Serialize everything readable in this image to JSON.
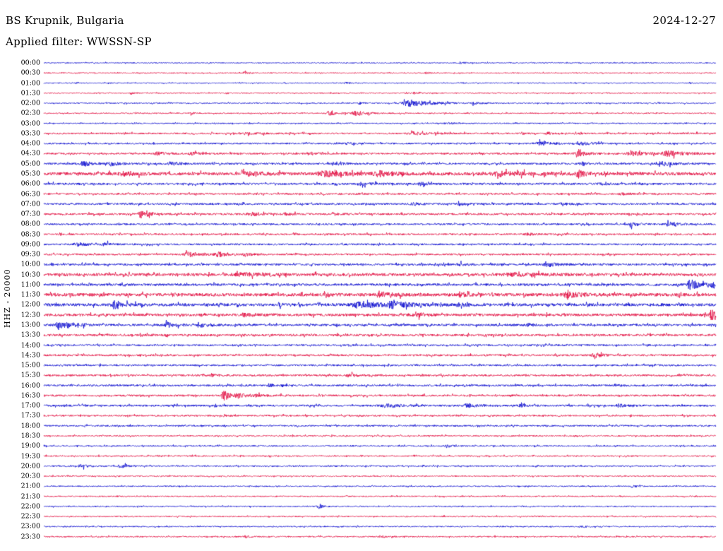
{
  "header": {
    "station": "BS Krupnik, Bulgaria",
    "date": "2024-12-27",
    "filter": "Applied filter: WWSSN-SP"
  },
  "chart_data": {
    "type": "line",
    "subtype": "helicorder-day-plot",
    "ylabel": "HHZ - 20000",
    "minutes_per_row": 30,
    "grid": false,
    "colors": {
      "blue": "#0000cc",
      "red": "#e00038"
    },
    "rows": [
      {
        "time": "00:00",
        "color": "blue",
        "base": 0.7,
        "events": [
          [
            0.62,
            1.2,
            0.008
          ]
        ]
      },
      {
        "time": "00:30",
        "color": "red",
        "base": 0.7,
        "events": [
          [
            0.3,
            1.5,
            0.006
          ],
          [
            0.57,
            1.2,
            0.006
          ]
        ]
      },
      {
        "time": "01:00",
        "color": "blue",
        "base": 0.7,
        "events": [
          [
            0.45,
            1.0,
            0.006
          ]
        ]
      },
      {
        "time": "01:30",
        "color": "red",
        "base": 0.7,
        "events": [
          [
            0.13,
            1.3,
            0.005
          ],
          [
            0.55,
            1.3,
            0.008
          ]
        ]
      },
      {
        "time": "02:00",
        "color": "blue",
        "base": 0.8,
        "events": [
          [
            0.545,
            4.5,
            0.03
          ],
          [
            0.47,
            1.3,
            0.006
          ],
          [
            0.64,
            1.5,
            0.01
          ]
        ]
      },
      {
        "time": "02:30",
        "color": "red",
        "base": 0.8,
        "events": [
          [
            0.425,
            2.8,
            0.012
          ],
          [
            0.465,
            3.2,
            0.015
          ],
          [
            0.22,
            1.2,
            0.005
          ]
        ]
      },
      {
        "time": "03:00",
        "color": "blue",
        "base": 0.8,
        "events": [
          [
            0.6,
            1.2,
            0.01
          ]
        ]
      },
      {
        "time": "03:30",
        "color": "red",
        "base": 1.1,
        "events": [
          [
            0.55,
            2.0,
            0.02
          ],
          [
            0.3,
            1.5,
            0.02
          ],
          [
            0.75,
            1.4,
            0.01
          ]
        ]
      },
      {
        "time": "04:00",
        "color": "blue",
        "base": 1.1,
        "events": [
          [
            0.74,
            2.2,
            0.02
          ],
          [
            0.8,
            2.0,
            0.015
          ],
          [
            0.45,
            1.3,
            0.01
          ]
        ]
      },
      {
        "time": "04:30",
        "color": "red",
        "base": 1.2,
        "events": [
          [
            0.17,
            2.0,
            0.015
          ],
          [
            0.22,
            1.8,
            0.01
          ],
          [
            0.4,
            1.5,
            0.01
          ],
          [
            0.795,
            4.5,
            0.012
          ],
          [
            0.875,
            3.0,
            0.02
          ],
          [
            0.93,
            3.5,
            0.025
          ]
        ]
      },
      {
        "time": "05:00",
        "color": "blue",
        "base": 1.3,
        "events": [
          [
            0.06,
            3.0,
            0.015
          ],
          [
            0.1,
            2.5,
            0.012
          ],
          [
            0.19,
            2.8,
            0.012
          ],
          [
            0.44,
            1.6,
            0.01
          ],
          [
            0.8,
            1.5,
            0.01
          ],
          [
            0.92,
            3.2,
            0.015
          ]
        ]
      },
      {
        "time": "05:30",
        "color": "red",
        "base": 2.2,
        "events": [
          [
            0.12,
            2.0,
            0.02
          ],
          [
            0.3,
            2.5,
            0.02
          ],
          [
            0.42,
            3.0,
            0.03
          ],
          [
            0.5,
            3.0,
            0.02
          ],
          [
            0.68,
            2.8,
            0.03
          ],
          [
            0.795,
            5.5,
            0.008
          ]
        ]
      },
      {
        "time": "06:00",
        "color": "blue",
        "base": 1.4,
        "events": [
          [
            0.47,
            1.8,
            0.015
          ],
          [
            0.56,
            1.8,
            0.01
          ],
          [
            0.83,
            1.5,
            0.01
          ]
        ]
      },
      {
        "time": "06:30",
        "color": "red",
        "base": 1.2,
        "events": [
          [
            0.86,
            1.4,
            0.01
          ]
        ]
      },
      {
        "time": "07:00",
        "color": "blue",
        "base": 1.3,
        "events": [
          [
            0.55,
            1.8,
            0.01
          ],
          [
            0.62,
            1.6,
            0.01
          ],
          [
            0.77,
            1.6,
            0.008
          ]
        ]
      },
      {
        "time": "07:30",
        "color": "red",
        "base": 1.3,
        "events": [
          [
            0.145,
            4.8,
            0.012
          ],
          [
            0.31,
            2.2,
            0.015
          ],
          [
            0.36,
            1.8,
            0.01
          ],
          [
            0.43,
            1.6,
            0.01
          ]
        ]
      },
      {
        "time": "08:00",
        "color": "blue",
        "base": 1.2,
        "events": [
          [
            0.875,
            2.8,
            0.01
          ],
          [
            0.93,
            3.2,
            0.012
          ]
        ]
      },
      {
        "time": "08:30",
        "color": "red",
        "base": 1.2,
        "events": [
          [
            0.72,
            1.4,
            0.01
          ]
        ]
      },
      {
        "time": "09:00",
        "color": "blue",
        "base": 1.2,
        "events": [
          [
            0.05,
            2.2,
            0.015
          ],
          [
            0.09,
            2.0,
            0.01
          ]
        ]
      },
      {
        "time": "09:30",
        "color": "red",
        "base": 1.2,
        "events": [
          [
            0.215,
            3.5,
            0.015
          ],
          [
            0.26,
            3.0,
            0.015
          ],
          [
            0.3,
            2.0,
            0.01
          ]
        ]
      },
      {
        "time": "10:00",
        "color": "blue",
        "base": 1.4,
        "events": [
          [
            0.62,
            1.5,
            0.01
          ],
          [
            0.75,
            2.8,
            0.015
          ]
        ]
      },
      {
        "time": "10:30",
        "color": "red",
        "base": 1.9,
        "events": [
          [
            0.3,
            1.5,
            0.05
          ],
          [
            0.7,
            1.5,
            0.05
          ]
        ]
      },
      {
        "time": "11:00",
        "color": "blue",
        "base": 1.6,
        "events": [
          [
            0.962,
            7.5,
            0.012
          ],
          [
            0.995,
            4.0,
            0.01
          ]
        ]
      },
      {
        "time": "11:30",
        "color": "red",
        "base": 2.2,
        "events": [
          [
            0.42,
            2.5,
            0.01
          ],
          [
            0.5,
            3.8,
            0.015
          ],
          [
            0.62,
            2.8,
            0.01
          ],
          [
            0.78,
            3.5,
            0.02
          ]
        ]
      },
      {
        "time": "12:00",
        "color": "blue",
        "base": 2.0,
        "events": [
          [
            0.105,
            4.5,
            0.012
          ],
          [
            0.35,
            2.0,
            0.01
          ],
          [
            0.47,
            4.0,
            0.03
          ],
          [
            0.52,
            4.5,
            0.02
          ],
          [
            0.62,
            2.5,
            0.01
          ]
        ]
      },
      {
        "time": "12:30",
        "color": "red",
        "base": 1.8,
        "events": [
          [
            0.3,
            1.8,
            0.02
          ],
          [
            0.555,
            3.2,
            0.012
          ],
          [
            0.995,
            10.0,
            0.01
          ]
        ]
      },
      {
        "time": "13:00",
        "color": "blue",
        "base": 1.5,
        "events": [
          [
            0.025,
            5.0,
            0.02
          ],
          [
            0.185,
            3.2,
            0.015
          ],
          [
            0.235,
            2.2,
            0.01
          ],
          [
            0.72,
            2.2,
            0.008
          ]
        ]
      },
      {
        "time": "13:30",
        "color": "red",
        "base": 1.5,
        "events": []
      },
      {
        "time": "14:00",
        "color": "blue",
        "base": 1.2,
        "events": []
      },
      {
        "time": "14:30",
        "color": "red",
        "base": 1.3,
        "events": [
          [
            0.82,
            2.8,
            0.012
          ]
        ]
      },
      {
        "time": "15:00",
        "color": "blue",
        "base": 1.2,
        "events": []
      },
      {
        "time": "15:30",
        "color": "red",
        "base": 1.3,
        "events": [
          [
            0.25,
            1.8,
            0.008
          ],
          [
            0.455,
            2.0,
            0.012
          ]
        ]
      },
      {
        "time": "16:00",
        "color": "blue",
        "base": 1.3,
        "events": [
          [
            0.335,
            2.0,
            0.008
          ],
          [
            0.85,
            2.0,
            0.008
          ]
        ]
      },
      {
        "time": "16:30",
        "color": "red",
        "base": 1.3,
        "events": [
          [
            0.268,
            9.0,
            0.006
          ],
          [
            0.29,
            2.0,
            0.03
          ]
        ]
      },
      {
        "time": "17:00",
        "color": "blue",
        "base": 1.3,
        "events": [
          [
            0.51,
            2.8,
            0.02
          ],
          [
            0.63,
            2.8,
            0.012
          ],
          [
            0.71,
            1.8,
            0.008
          ],
          [
            0.855,
            2.2,
            0.01
          ]
        ]
      },
      {
        "time": "17:30",
        "color": "red",
        "base": 1.1,
        "events": [
          [
            0.268,
            2.0,
            0.004
          ]
        ]
      },
      {
        "time": "18:00",
        "color": "blue",
        "base": 1.1,
        "events": []
      },
      {
        "time": "18:30",
        "color": "red",
        "base": 0.9,
        "events": []
      },
      {
        "time": "19:00",
        "color": "blue",
        "base": 0.9,
        "events": [
          [
            0.6,
            1.2,
            0.008
          ]
        ]
      },
      {
        "time": "19:30",
        "color": "red",
        "base": 0.9,
        "events": []
      },
      {
        "time": "20:00",
        "color": "blue",
        "base": 0.9,
        "events": [
          [
            0.055,
            2.2,
            0.01
          ],
          [
            0.115,
            2.2,
            0.012
          ]
        ]
      },
      {
        "time": "20:30",
        "color": "red",
        "base": 0.8,
        "events": []
      },
      {
        "time": "21:00",
        "color": "blue",
        "base": 0.8,
        "events": [
          [
            0.875,
            1.5,
            0.008
          ]
        ]
      },
      {
        "time": "21:30",
        "color": "red",
        "base": 0.8,
        "events": []
      },
      {
        "time": "22:00",
        "color": "blue",
        "base": 0.8,
        "events": [
          [
            0.41,
            4.0,
            0.004
          ]
        ]
      },
      {
        "time": "22:30",
        "color": "red",
        "base": 0.8,
        "events": []
      },
      {
        "time": "23:00",
        "color": "blue",
        "base": 0.8,
        "events": [
          [
            0.8,
            1.2,
            0.01
          ]
        ]
      },
      {
        "time": "23:30",
        "color": "red",
        "base": 0.9,
        "events": [
          [
            0.3,
            1.3,
            0.008
          ],
          [
            0.5,
            1.2,
            0.008
          ]
        ]
      }
    ]
  }
}
